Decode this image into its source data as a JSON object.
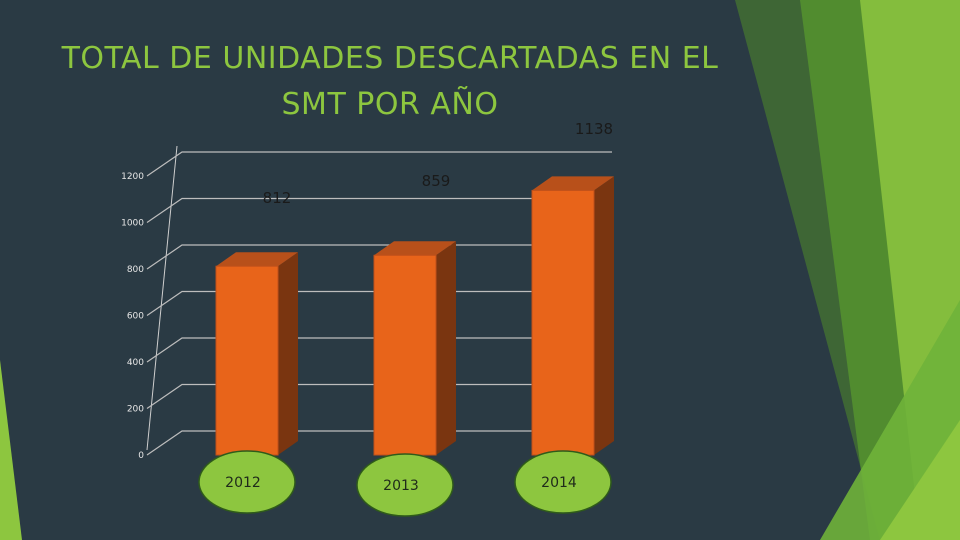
{
  "slide": {
    "title": "TOTAL DE UNIDADES DESCARTADAS EN EL SMT POR AÑO"
  },
  "colors": {
    "background": "#2a3a44",
    "accent_green": "#8dc63f",
    "bar_front": "#e8641a",
    "bar_side": "#7a3510",
    "bar_top": "#b8501a",
    "label_ellipse": "#8dc63f"
  },
  "chart_data": {
    "type": "bar",
    "title": "",
    "xlabel": "",
    "ylabel": "",
    "categories": [
      "2012",
      "2013",
      "2014"
    ],
    "values": [
      812,
      859,
      1138
    ],
    "data_labels": [
      "812",
      "859",
      "1138"
    ],
    "ylim": [
      0,
      1200
    ],
    "yticks": [
      0,
      200,
      400,
      600,
      800,
      1000,
      1200
    ],
    "grid": true,
    "style": "3d-column"
  }
}
